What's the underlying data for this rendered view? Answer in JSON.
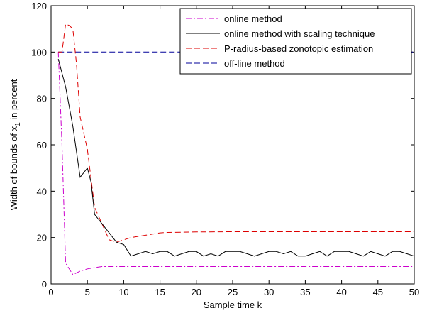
{
  "chart_data": {
    "type": "line",
    "title": "",
    "xlabel": "Sample time k",
    "ylabel_parts": {
      "pre": "Width of bounds  of x",
      "sub": "1",
      "post": "  in percent"
    },
    "xlim": [
      0,
      50
    ],
    "ylim": [
      0,
      120
    ],
    "xticks": [
      0,
      5,
      10,
      15,
      20,
      25,
      30,
      35,
      40,
      45,
      50
    ],
    "yticks": [
      0,
      20,
      40,
      60,
      80,
      100,
      120
    ],
    "grid": false,
    "legend_position": "top-right",
    "series": [
      {
        "name": "online method",
        "color": "#cc00cc",
        "dash": "dashdot",
        "points": [
          [
            1,
            100
          ],
          [
            1.5,
            60
          ],
          [
            2,
            9
          ],
          [
            3,
            4
          ],
          [
            4,
            5.5
          ],
          [
            5,
            6.5
          ],
          [
            6,
            7
          ],
          [
            7,
            7.5
          ],
          [
            10,
            7.5
          ],
          [
            20,
            7.5
          ],
          [
            30,
            7.5
          ],
          [
            40,
            7.5
          ],
          [
            50,
            7.5
          ]
        ]
      },
      {
        "name": "online method with scaling technique",
        "color": "#000000",
        "dash": "solid",
        "points": [
          [
            1,
            97
          ],
          [
            2,
            85
          ],
          [
            3,
            68
          ],
          [
            4,
            46
          ],
          [
            5,
            50
          ],
          [
            5.5,
            44
          ],
          [
            6,
            30
          ],
          [
            7,
            26
          ],
          [
            8,
            22
          ],
          [
            9,
            18
          ],
          [
            10,
            17
          ],
          [
            11,
            12
          ],
          [
            12,
            13
          ],
          [
            13,
            14
          ],
          [
            14,
            13
          ],
          [
            15,
            14
          ],
          [
            16,
            14
          ],
          [
            17,
            12
          ],
          [
            18,
            13
          ],
          [
            19,
            14
          ],
          [
            20,
            14
          ],
          [
            21,
            12
          ],
          [
            22,
            13
          ],
          [
            23,
            12
          ],
          [
            24,
            14
          ],
          [
            25,
            14
          ],
          [
            26,
            14
          ],
          [
            27,
            13
          ],
          [
            28,
            12
          ],
          [
            29,
            13
          ],
          [
            30,
            14
          ],
          [
            31,
            14
          ],
          [
            32,
            13
          ],
          [
            33,
            14
          ],
          [
            34,
            12
          ],
          [
            35,
            12
          ],
          [
            36,
            13
          ],
          [
            37,
            14
          ],
          [
            38,
            12
          ],
          [
            39,
            14
          ],
          [
            40,
            14
          ],
          [
            41,
            14
          ],
          [
            42,
            13
          ],
          [
            43,
            12
          ],
          [
            44,
            14
          ],
          [
            45,
            13
          ],
          [
            46,
            12
          ],
          [
            47,
            14
          ],
          [
            48,
            14
          ],
          [
            49,
            13
          ],
          [
            50,
            12
          ]
        ]
      },
      {
        "name": "P-radius-based zonotopic estimation",
        "color": "#dd0000",
        "dash": "dashed",
        "points": [
          [
            1,
            100
          ],
          [
            1.5,
            100
          ],
          [
            2,
            112
          ],
          [
            2.5,
            111.5
          ],
          [
            3,
            110
          ],
          [
            3.5,
            95
          ],
          [
            4,
            72
          ],
          [
            5,
            58
          ],
          [
            6,
            33
          ],
          [
            7,
            26
          ],
          [
            8,
            19
          ],
          [
            9,
            18
          ],
          [
            10,
            19
          ],
          [
            11,
            20
          ],
          [
            12,
            20.5
          ],
          [
            13,
            21
          ],
          [
            14,
            21.5
          ],
          [
            15,
            22
          ],
          [
            16,
            22.2
          ],
          [
            18,
            22.3
          ],
          [
            20,
            22.4
          ],
          [
            25,
            22.5
          ],
          [
            30,
            22.5
          ],
          [
            35,
            22.5
          ],
          [
            40,
            22.5
          ],
          [
            45,
            22.5
          ],
          [
            50,
            22.5
          ]
        ]
      },
      {
        "name": "off-line method",
        "color": "#000099",
        "dash": "dashed",
        "points": [
          [
            1,
            100
          ],
          [
            50,
            100
          ]
        ]
      }
    ]
  }
}
